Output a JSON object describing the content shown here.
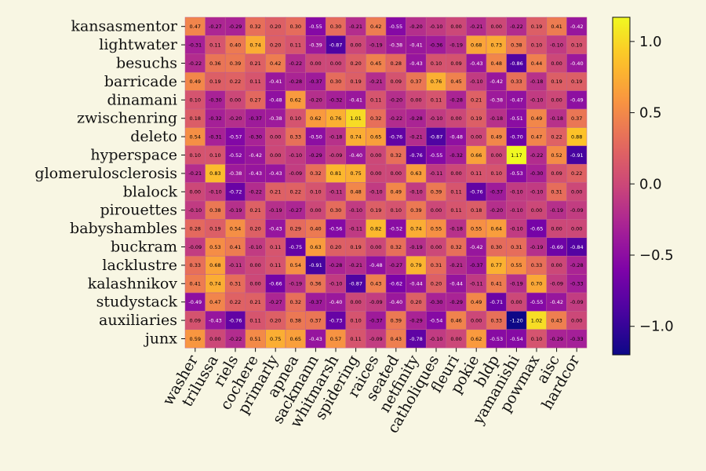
{
  "chart_data": {
    "type": "heatmap",
    "title": "",
    "xlabel": "",
    "ylabel": "",
    "rows": [
      "kansasmentor",
      "lightwater",
      "besuchs",
      "barricade",
      "dinamani",
      "zwischenring",
      "deleto",
      "hyperspace",
      "glomerulosclerosis",
      "blalock",
      "pirouettes",
      "babyshambles",
      "buckram",
      "lacklustre",
      "kalashnikov",
      "studystack",
      "auxiliaries",
      "junx"
    ],
    "columns": [
      "washer",
      "trilussa",
      "riels",
      "cochere",
      "primarly",
      "apnea",
      "sackmann",
      "whitmarsh",
      "spidering",
      "raices",
      "seated",
      "netfinity",
      "catholiques",
      "fleuri",
      "pokie",
      "bldp",
      "yamanishi",
      "powmax",
      "aisc",
      "hardcor"
    ],
    "values": [
      [
        0.47,
        -0.27,
        -0.29,
        0.32,
        0.2,
        0.3,
        -0.55,
        0.3,
        -0.21,
        0.42,
        -0.55,
        -0.2,
        -0.1,
        0.0,
        -0.21,
        0.0,
        -0.22,
        0.19,
        0.41,
        -0.42
      ],
      [
        -0.31,
        0.11,
        0.4,
        0.74,
        0.2,
        0.11,
        -0.39,
        -0.87,
        0.0,
        -0.19,
        -0.38,
        -0.41,
        -0.36,
        -0.19,
        0.68,
        0.73,
        0.38,
        0.1,
        -0.1,
        0.1
      ],
      [
        -0.22,
        0.36,
        0.39,
        0.21,
        0.42,
        -0.22,
        0.0,
        0.0,
        0.2,
        0.45,
        0.28,
        -0.43,
        0.1,
        0.09,
        -0.43,
        0.48,
        -0.86,
        0.44,
        0.0,
        -0.4
      ],
      [
        0.49,
        0.19,
        0.22,
        0.11,
        -0.41,
        -0.28,
        -0.37,
        0.3,
        0.19,
        -0.21,
        0.09,
        0.37,
        0.76,
        0.45,
        -0.1,
        -0.42,
        0.33,
        -0.18,
        0.19,
        0.19
      ],
      [
        0.1,
        -0.3,
        0.0,
        0.27,
        -0.48,
        0.62,
        -0.2,
        -0.32,
        -0.41,
        0.11,
        -0.2,
        0.0,
        0.11,
        -0.28,
        0.21,
        -0.38,
        -0.47,
        -0.1,
        0.0,
        -0.49
      ],
      [
        0.18,
        -0.32,
        -0.2,
        -0.37,
        -0.38,
        0.1,
        0.62,
        0.76,
        1.01,
        0.32,
        -0.22,
        -0.28,
        -0.1,
        0.0,
        0.19,
        -0.18,
        -0.51,
        0.49,
        -0.18,
        0.37
      ],
      [
        0.54,
        -0.31,
        -0.57,
        -0.3,
        0.0,
        0.33,
        -0.5,
        -0.18,
        0.74,
        0.65,
        -0.76,
        -0.21,
        -0.87,
        -0.48,
        0.0,
        0.49,
        -0.7,
        0.47,
        0.22,
        0.88
      ],
      [
        0.1,
        0.1,
        -0.52,
        -0.42,
        0.0,
        -0.1,
        -0.29,
        -0.09,
        -0.4,
        0.0,
        0.32,
        -0.76,
        -0.55,
        -0.32,
        0.66,
        0.0,
        1.17,
        -0.22,
        0.52,
        -0.91
      ],
      [
        -0.21,
        0.83,
        -0.38,
        -0.43,
        -0.43,
        -0.09,
        0.32,
        0.81,
        0.75,
        0.0,
        0.0,
        0.63,
        -0.11,
        0.0,
        0.11,
        0.1,
        -0.53,
        -0.3,
        0.09,
        0.22
      ],
      [
        0.0,
        -0.1,
        -0.72,
        -0.22,
        0.21,
        0.22,
        0.1,
        -0.11,
        0.48,
        -0.1,
        0.49,
        -0.1,
        0.39,
        0.11,
        -0.76,
        -0.37,
        -0.1,
        -0.1,
        0.31,
        0.0
      ],
      [
        -0.1,
        0.38,
        -0.19,
        0.21,
        -0.19,
        -0.27,
        0.0,
        0.3,
        -0.1,
        0.19,
        0.1,
        0.39,
        0.0,
        0.11,
        0.18,
        -0.2,
        -0.1,
        0.0,
        -0.19,
        -0.09
      ],
      [
        0.28,
        0.19,
        0.54,
        0.2,
        -0.43,
        0.29,
        0.4,
        -0.56,
        -0.11,
        0.82,
        -0.52,
        0.74,
        0.55,
        -0.18,
        0.55,
        0.64,
        -0.1,
        -0.65,
        0.0,
        0.0
      ],
      [
        -0.09,
        0.53,
        0.41,
        -0.1,
        0.11,
        -0.75,
        0.63,
        0.2,
        0.19,
        0.0,
        0.32,
        -0.19,
        0.0,
        0.32,
        -0.42,
        0.3,
        0.31,
        -0.19,
        -0.69,
        -0.84
      ],
      [
        0.33,
        0.68,
        -0.11,
        0.0,
        0.11,
        0.54,
        -0.91,
        -0.28,
        -0.21,
        -0.48,
        -0.27,
        0.79,
        0.31,
        -0.21,
        -0.37,
        0.77,
        0.55,
        0.33,
        0.0,
        -0.28
      ],
      [
        0.41,
        0.74,
        0.31,
        0.0,
        -0.66,
        -0.19,
        0.36,
        -0.1,
        -0.87,
        0.43,
        -0.62,
        -0.44,
        0.2,
        -0.44,
        -0.11,
        0.41,
        -0.19,
        0.7,
        -0.09,
        -0.33
      ],
      [
        -0.49,
        0.47,
        0.22,
        0.21,
        -0.27,
        0.32,
        -0.37,
        -0.4,
        0.0,
        -0.09,
        -0.4,
        0.2,
        -0.3,
        -0.29,
        0.49,
        -0.71,
        0.0,
        -0.55,
        -0.42,
        -0.09
      ],
      [
        0.09,
        -0.43,
        -0.76,
        0.11,
        0.2,
        0.38,
        0.37,
        -0.73,
        0.1,
        -0.37,
        0.39,
        -0.29,
        -0.54,
        0.46,
        0.0,
        0.33,
        -1.2,
        1.02,
        0.43,
        0.0
      ],
      [
        0.59,
        0.0,
        -0.22,
        0.51,
        0.75,
        0.65,
        -0.43,
        0.57,
        0.11,
        -0.09,
        0.43,
        -0.78,
        -0.1,
        0.0,
        0.62,
        -0.53,
        -0.54,
        0.1,
        -0.29,
        -0.33
      ]
    ],
    "colorbar": {
      "range": [
        -1.2,
        1.17
      ],
      "ticks": [
        -1.0,
        -0.5,
        0.0,
        0.5,
        1.0
      ],
      "tick_labels": [
        "−1.0",
        "−0.5",
        "0.0",
        "0.5",
        "1.0"
      ],
      "colormap": "plasma"
    },
    "grid": false,
    "legend": "colorbar-right"
  },
  "colors": {
    "background": "#f8f6e3",
    "cell_border": "#c06090"
  }
}
